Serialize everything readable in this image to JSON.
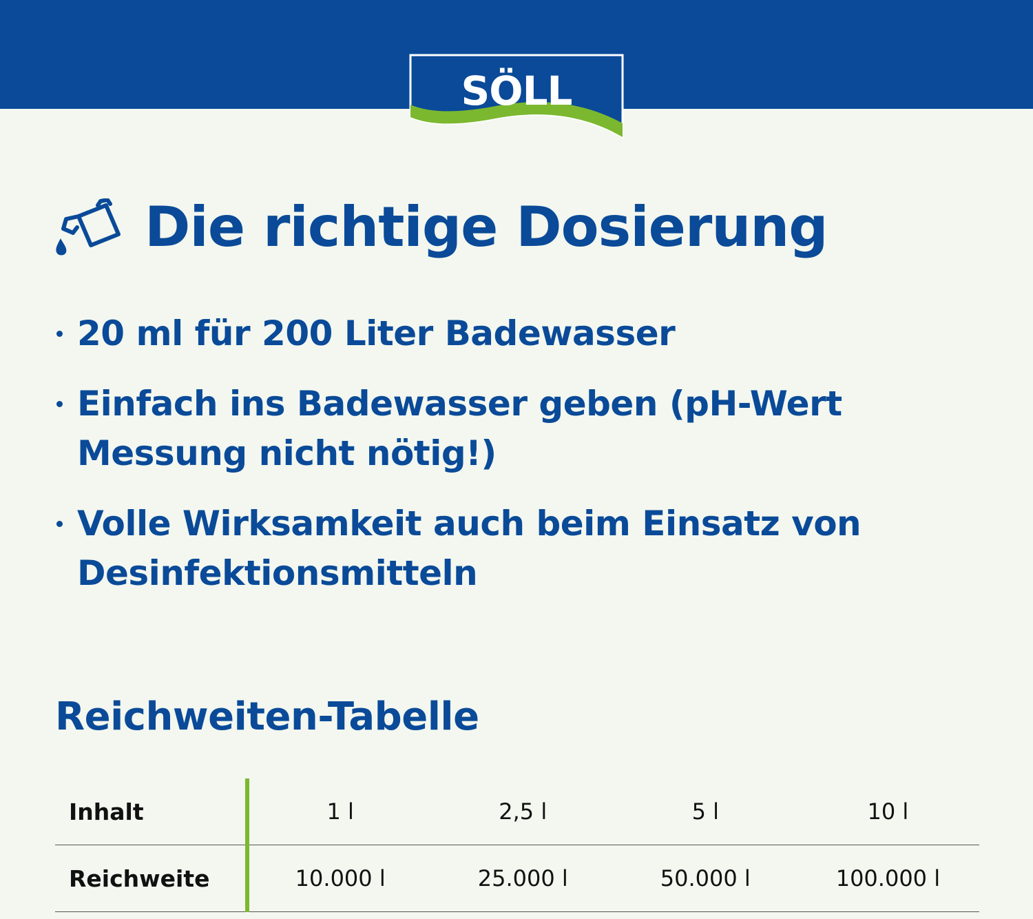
{
  "brand": {
    "logo_text": "SÖLL",
    "colors": {
      "primary_blue": "#0a4a98",
      "accent_green": "#7cb82f",
      "background": "#f3f7ef"
    }
  },
  "heading": {
    "icon": "pouring-bottle-icon",
    "title": "Die richtige Dosierung"
  },
  "bullets": [
    {
      "text": "20 ml für 200 Liter Badewasser"
    },
    {
      "text": "Einfach ins Badewasser geben (pH-Wert Messung nicht nötig!)"
    },
    {
      "text": "Volle Wirksamkeit auch beim Einsatz von Desinfektionsmitteln"
    }
  ],
  "range_table": {
    "title": "Reichweiten-Tabelle",
    "rows": [
      {
        "label": "Inhalt",
        "values": [
          "1 l",
          "2,5 l",
          "5 l",
          "10 l"
        ]
      },
      {
        "label": "Reichweite",
        "values": [
          "10.000 l",
          "25.000 l",
          "50.000 l",
          "100.000 l"
        ]
      }
    ]
  }
}
